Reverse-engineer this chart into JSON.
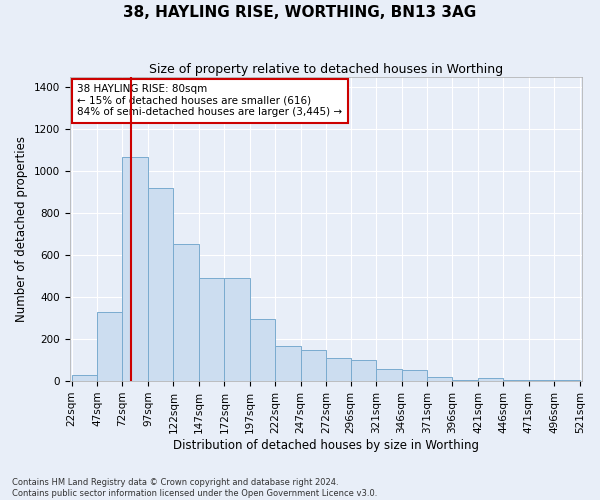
{
  "title": "38, HAYLING RISE, WORTHING, BN13 3AG",
  "subtitle": "Size of property relative to detached houses in Worthing",
  "xlabel": "Distribution of detached houses by size in Worthing",
  "ylabel": "Number of detached properties",
  "annotation_line1": "38 HAYLING RISE: 80sqm",
  "annotation_line2": "← 15% of detached houses are smaller (616)",
  "annotation_line3": "84% of semi-detached houses are larger (3,445) →",
  "footer_line1": "Contains HM Land Registry data © Crown copyright and database right 2024.",
  "footer_line2": "Contains public sector information licensed under the Open Government Licence v3.0.",
  "bins": [
    22,
    47,
    72,
    97,
    122,
    147,
    172,
    197,
    222,
    247,
    272,
    296,
    321,
    346,
    371,
    396,
    421,
    446,
    471,
    496,
    521
  ],
  "bar_heights": [
    25,
    330,
    1065,
    920,
    650,
    490,
    490,
    295,
    165,
    145,
    110,
    100,
    55,
    50,
    20,
    5,
    15,
    5,
    5,
    5
  ],
  "bar_color": "#ccddf0",
  "bar_edge_color": "#7aabcf",
  "vline_color": "#cc0000",
  "vline_x": 80,
  "ylim": [
    0,
    1450
  ],
  "yticks": [
    0,
    200,
    400,
    600,
    800,
    1000,
    1200,
    1400
  ],
  "background_color": "#e8eef8",
  "plot_background": "#e8eef8",
  "grid_color": "#ffffff",
  "annotation_box_color": "#ffffff",
  "annotation_box_edge": "#cc0000",
  "title_fontsize": 11,
  "subtitle_fontsize": 9,
  "axis_label_fontsize": 8.5,
  "tick_fontsize": 7.5,
  "footer_fontsize": 6.0
}
